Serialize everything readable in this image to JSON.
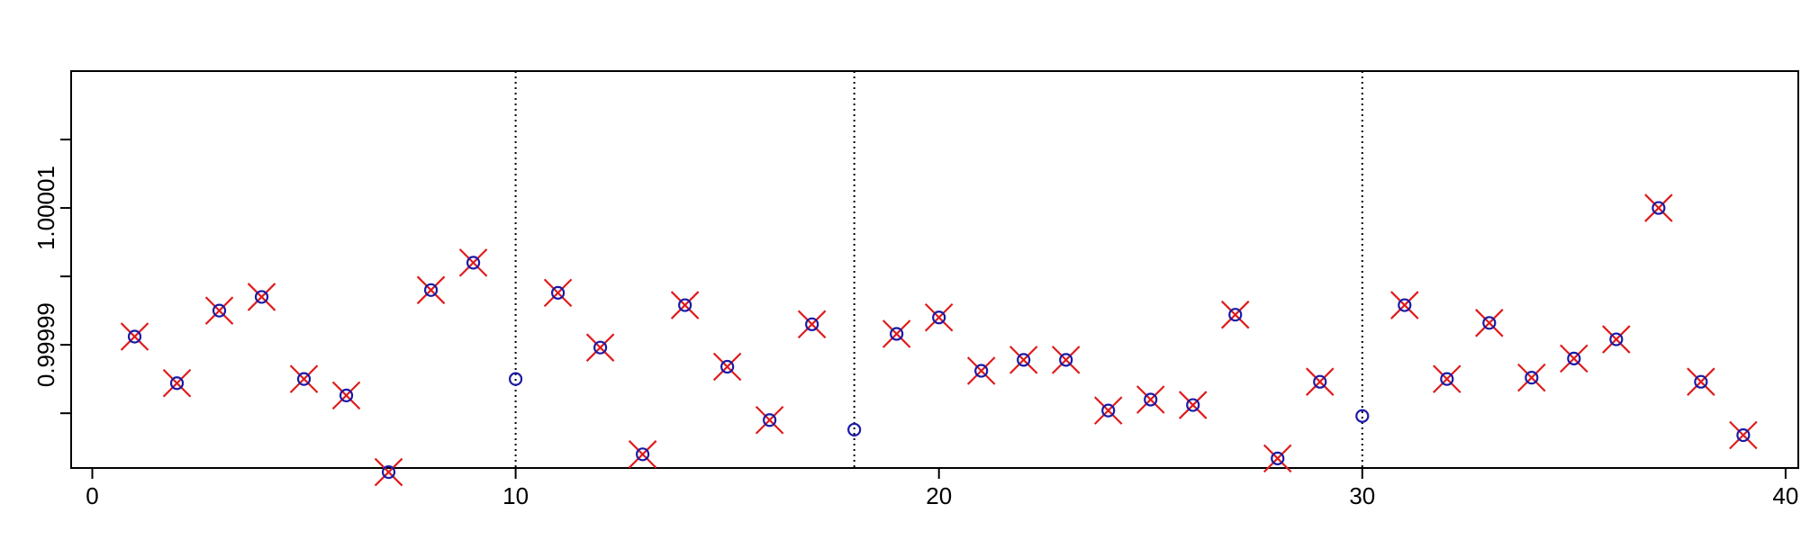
{
  "chart_data": {
    "type": "scatter",
    "title": "",
    "xlabel": "",
    "ylabel": "",
    "xlim": [
      -0.5,
      40.3
    ],
    "ylim": [
      0.999986,
      1.000015
    ],
    "x_ticks": [
      0,
      10,
      20,
      30,
      40
    ],
    "x_tick_labels": [
      "0",
      "10",
      "20",
      "30",
      "40"
    ],
    "y_ticks": [
      0.99999,
      0.999995,
      1.0,
      1.000005,
      1.00001
    ],
    "y_tick_labels": [
      "",
      "0.99999",
      "",
      "1.00001",
      ""
    ],
    "vlines": [
      10,
      18,
      30
    ],
    "colors": {
      "circle": "#1a1aa6",
      "cross": "#e01b1b",
      "axis": "#000000"
    },
    "series": [
      {
        "marker": "circle",
        "x": [
          1,
          2,
          3,
          4,
          5,
          6,
          7,
          8,
          9,
          10,
          11,
          12,
          13,
          14,
          15,
          16,
          17,
          18,
          19,
          20,
          21,
          22,
          23,
          24,
          25,
          26,
          27,
          28,
          29,
          30,
          31,
          32,
          33,
          34,
          35,
          36,
          37,
          38,
          39
        ],
        "y": [
          0.9999956,
          0.9999922,
          0.9999975,
          0.9999985,
          0.9999925,
          0.9999913,
          0.9999857,
          0.999999,
          1.000001,
          0.9999925,
          0.9999988,
          0.9999948,
          0.999987,
          0.9999979,
          0.9999934,
          0.9999895,
          0.9999965,
          0.9999888,
          0.9999958,
          0.999997,
          0.9999931,
          0.9999939,
          0.9999939,
          0.9999902,
          0.999991,
          0.9999906,
          0.9999972,
          0.9999867,
          0.9999923,
          0.9999898,
          0.9999979,
          0.9999925,
          0.9999966,
          0.9999926,
          0.999994,
          0.9999954,
          1.000005,
          0.9999923,
          0.9999884
        ]
      },
      {
        "marker": "x",
        "x": [
          1,
          2,
          3,
          4,
          5,
          6,
          7,
          8,
          9,
          11,
          12,
          13,
          14,
          15,
          16,
          17,
          19,
          20,
          21,
          22,
          23,
          24,
          25,
          26,
          27,
          28,
          29,
          31,
          32,
          33,
          34,
          35,
          36,
          37,
          38,
          39
        ],
        "y": [
          0.9999956,
          0.9999922,
          0.9999975,
          0.9999985,
          0.9999925,
          0.9999913,
          0.9999857,
          0.999999,
          1.000001,
          0.9999988,
          0.9999948,
          0.999987,
          0.9999979,
          0.9999934,
          0.9999895,
          0.9999965,
          0.9999958,
          0.999997,
          0.9999931,
          0.9999939,
          0.9999939,
          0.9999902,
          0.999991,
          0.9999906,
          0.9999972,
          0.9999867,
          0.9999923,
          0.9999979,
          0.9999925,
          0.9999966,
          0.9999926,
          0.999994,
          0.9999954,
          1.000005,
          0.9999923,
          0.9999884
        ]
      }
    ]
  }
}
